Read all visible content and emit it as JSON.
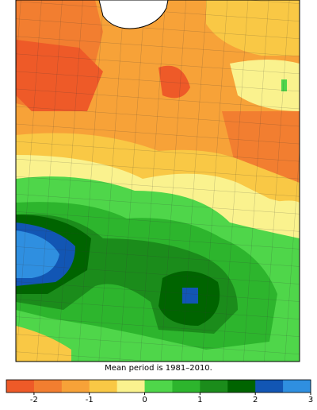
{
  "map": {
    "caption": "Mean period is 1981–2010.",
    "colorbar": {
      "range": [
        -2.5,
        3
      ],
      "ticks": [
        -2,
        -1,
        0,
        1,
        2,
        3
      ],
      "colors": [
        "#ee5a28",
        "#f27e30",
        "#f7a238",
        "#f9c845",
        "#faf28e",
        "#4fd64a",
        "#2db52d",
        "#1b8c1b",
        "#006400",
        "#1256b4",
        "#2f8fe0"
      ]
    }
  }
}
